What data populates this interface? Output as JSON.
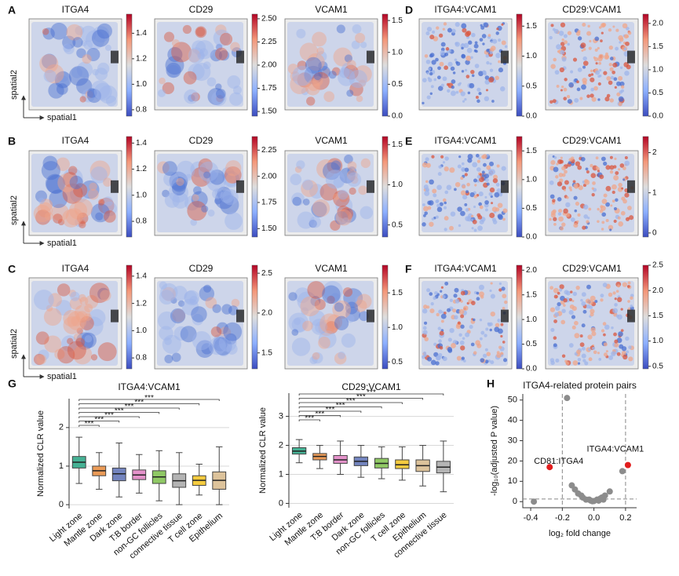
{
  "chart_data": [
    {
      "type": "spatial-map",
      "panel": "A",
      "title": "ITGA4",
      "clim": [
        0.75,
        1.55
      ],
      "cticks": [
        0.8,
        {
          "value": 1.0,
          "label": "1.0"
        },
        1.2,
        1.4
      ],
      "xlabel": "spatial1",
      "ylabel": "spatial2"
    },
    {
      "type": "spatial-map",
      "title": "CD29",
      "clim": [
        1.45,
        2.55
      ],
      "cticks": [
        {
          "value": 1.5,
          "label": "1.50"
        },
        1.75,
        {
          "value": 2.0,
          "label": "2.00"
        },
        2.25,
        {
          "value": 2.5,
          "label": "2.50"
        }
      ]
    },
    {
      "type": "spatial-map",
      "title": "VCAM1",
      "clim": [
        0,
        1.6
      ],
      "cticks": [
        {
          "value": 0,
          "label": "0.0"
        },
        0.5,
        {
          "value": 1.0,
          "label": "1.0"
        },
        1.5
      ]
    },
    {
      "type": "spatial-map",
      "panel": "D",
      "title": "ITGA4:VCAM1",
      "clim": [
        0,
        1.7
      ],
      "cticks": [
        {
          "value": 0,
          "label": "0.0"
        },
        0.5,
        {
          "value": 1.0,
          "label": "1.0"
        },
        1.5
      ]
    },
    {
      "type": "spatial-map",
      "title": "CD29:VCAM1",
      "clim": [
        0,
        2.2
      ],
      "cticks": [
        {
          "value": 0,
          "label": "0.0"
        },
        0.5,
        {
          "value": 1.0,
          "label": "1.0"
        },
        1.5,
        {
          "value": 2.0,
          "label": "2.0"
        }
      ]
    },
    {
      "type": "spatial-map",
      "panel": "B",
      "title": "ITGA4",
      "clim": [
        0.68,
        1.45
      ],
      "cticks": [
        0.8,
        {
          "value": 1.0,
          "label": "1.0"
        },
        1.2,
        1.4
      ],
      "xlabel": "spatial1",
      "ylabel": "spatial2"
    },
    {
      "type": "spatial-map",
      "title": "CD29",
      "clim": [
        1.42,
        2.38
      ],
      "cticks": [
        {
          "value": 1.5,
          "label": "1.50"
        },
        1.75,
        {
          "value": 2.0,
          "label": "2.00"
        },
        2.25
      ]
    },
    {
      "type": "spatial-map",
      "title": "VCAM1",
      "clim": [
        0.35,
        1.6
      ],
      "cticks": [
        0.5,
        {
          "value": 1.0,
          "label": "1.0"
        },
        1.5
      ]
    },
    {
      "type": "spatial-map",
      "panel": "E",
      "title": "ITGA4:VCAM1",
      "clim": [
        0,
        1.75
      ],
      "cticks": [
        {
          "value": 0,
          "label": "0.0"
        },
        0.5,
        {
          "value": 1.0,
          "label": "1.0"
        },
        1.5
      ]
    },
    {
      "type": "spatial-map",
      "title": "CD29:VCAM1",
      "clim": [
        -0.1,
        2.4
      ],
      "cticks": [
        0,
        1,
        2
      ]
    },
    {
      "type": "spatial-map",
      "panel": "C",
      "title": "ITGA4",
      "clim": [
        0.72,
        1.48
      ],
      "cticks": [
        0.8,
        {
          "value": 1.0,
          "label": "1.0"
        },
        1.2,
        1.4
      ],
      "xlabel": "spatial1",
      "ylabel": "spatial2"
    },
    {
      "type": "spatial-map",
      "title": "CD29",
      "clim": [
        1.3,
        2.6
      ],
      "cticks": [
        1.5,
        {
          "value": 2.0,
          "label": "2.0"
        },
        2.5
      ]
    },
    {
      "type": "spatial-map",
      "title": "VCAM1",
      "clim": [
        0.4,
        1.9
      ],
      "cticks": [
        0.5,
        {
          "value": 1.0,
          "label": "1.0"
        },
        1.5
      ]
    },
    {
      "type": "spatial-map",
      "panel": "F",
      "title": "ITGA4:VCAM1",
      "clim": [
        0,
        2.1
      ],
      "cticks": [
        {
          "value": 0,
          "label": "0.0"
        },
        0.5,
        {
          "value": 1.0,
          "label": "1.0"
        },
        1.5,
        {
          "value": 2.0,
          "label": "2.0"
        }
      ]
    },
    {
      "type": "spatial-map",
      "title": "CD29:VCAM1",
      "clim": [
        0.45,
        2.5
      ],
      "cticks": [
        0.5,
        {
          "value": 1.0,
          "label": "1.0"
        },
        1.5,
        {
          "value": 2.0,
          "label": "2.0"
        },
        2.5
      ]
    },
    {
      "type": "box",
      "panel": "G",
      "title": "ITGA4:VCAM1",
      "ylabel": "Normalized CLR value",
      "categories": [
        "Light zone",
        "Mantle zone",
        "Dark zone",
        "T:B border",
        "non-GC follicles",
        "connective tissue",
        "T cell zone",
        "Epithelium"
      ],
      "colors": [
        "#26a482",
        "#e8893a",
        "#5b6fb3",
        "#df7fc1",
        "#7cbf4a",
        "#a7a7a7",
        "#f2c21d",
        "#d7b98a"
      ],
      "min": [
        0.55,
        0.4,
        0.2,
        0.3,
        0.1,
        0,
        0.25,
        0
      ],
      "q1": [
        0.95,
        0.75,
        0.62,
        0.65,
        0.55,
        0.45,
        0.5,
        0.4
      ],
      "median": [
        1.1,
        0.88,
        0.8,
        0.77,
        0.72,
        0.62,
        0.63,
        0.63
      ],
      "q3": [
        1.25,
        1.0,
        0.95,
        0.9,
        0.88,
        0.8,
        0.75,
        0.85
      ],
      "max": [
        1.75,
        1.35,
        1.6,
        1.3,
        1.4,
        1.35,
        1.05,
        1.5
      ],
      "ylim": [
        -0.1,
        2.75
      ],
      "yticks": [
        0,
        1,
        2
      ],
      "grid": true,
      "brackets": [
        "***",
        "***",
        "***",
        "***",
        "***",
        "***",
        "***"
      ]
    },
    {
      "type": "box",
      "title": "CD29:VCAM1",
      "ylabel": "Normalized CLR value",
      "categories": [
        "Light zone",
        "Mantle zone",
        "T:B border",
        "Dark zone",
        "non-GC follicles",
        "T cell zone",
        "Epithelium",
        "connective tissue"
      ],
      "colors": [
        "#26a482",
        "#e8893a",
        "#df7fc1",
        "#5b6fb3",
        "#7cbf4a",
        "#f2c21d",
        "#d7b98a",
        "#a7a7a7"
      ],
      "min": [
        1.4,
        1.2,
        1.0,
        0.9,
        0.85,
        0.8,
        0.6,
        0.4
      ],
      "q1": [
        1.7,
        1.5,
        1.38,
        1.3,
        1.22,
        1.2,
        1.1,
        1.05
      ],
      "median": [
        1.8,
        1.62,
        1.5,
        1.45,
        1.38,
        1.33,
        1.3,
        1.25
      ],
      "q3": [
        1.92,
        1.72,
        1.65,
        1.6,
        1.55,
        1.5,
        1.5,
        1.45
      ],
      "max": [
        2.2,
        2.0,
        2.15,
        2.0,
        1.95,
        1.95,
        2.0,
        2.15
      ],
      "ylim": [
        -0.15,
        3.8
      ],
      "yticks": [
        0,
        1,
        2,
        3
      ],
      "grid": true,
      "brackets": [
        "***",
        "***",
        "***",
        "***",
        "***",
        "***",
        "***"
      ]
    },
    {
      "type": "scatter",
      "panel": "H",
      "title": "ITGA4-related protein pairs",
      "xlabel": "log₂ fold change",
      "ylabel": "-log₁₀(adjusted P value)",
      "xlim": [
        -0.45,
        0.27
      ],
      "xticks": [
        -0.4,
        -0.2,
        {
          "value": 0,
          "label": "0.0"
        },
        0.2
      ],
      "ylim": [
        -3,
        53
      ],
      "yticks": [
        0,
        10,
        20,
        30,
        40,
        50
      ],
      "thresholds": {
        "x": [
          -0.2,
          0.2
        ],
        "y": 1.3
      },
      "series": [
        {
          "color": "#8c8c8c",
          "x": [
            -0.38,
            -0.17,
            -0.14,
            -0.12,
            -0.1,
            -0.08,
            -0.07,
            -0.05,
            -0.03,
            -0.02,
            0,
            0.02,
            0.04,
            0.05,
            0.07,
            0.1,
            0.18,
            -0.01,
            0.03,
            0.06
          ],
          "y": [
            0,
            51,
            8,
            6,
            4,
            3,
            2,
            1,
            1,
            0.5,
            0.3,
            1,
            1.5,
            2,
            3,
            5,
            15,
            0.2,
            0.5,
            1
          ]
        },
        {
          "color": "#e21d1d",
          "x": [
            -0.28,
            0.215
          ],
          "y": [
            17,
            18
          ],
          "point_labels": [
            "CD81:ITGA4",
            "ITGA4:VCAM1"
          ]
        }
      ]
    }
  ]
}
